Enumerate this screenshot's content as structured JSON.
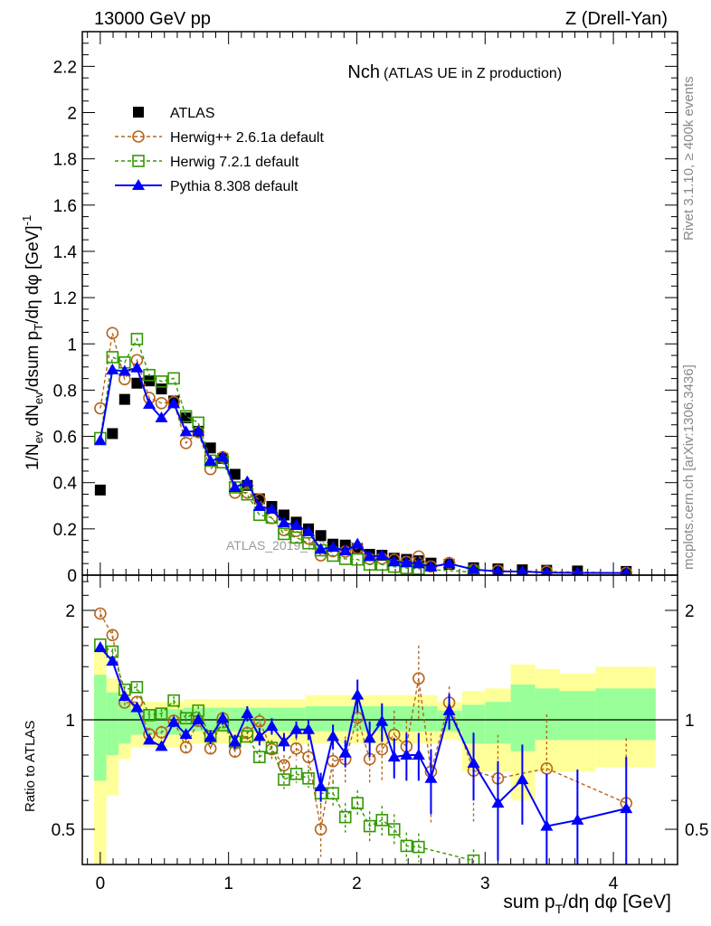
{
  "header": {
    "left": "13000 GeV pp",
    "right": "Z (Drell-Yan)"
  },
  "side_text": {
    "rivet": "Rivet 3.1.10, ≥ 400k events",
    "mcplots": "mcplots.cern.ch [arXiv:1306.3436]"
  },
  "watermark": "ATLAS_2019_I1736531",
  "colors": {
    "data": "#000000",
    "herwigpp": "#b5651d",
    "herwig7": "#339900",
    "pythia": "#0000ff",
    "band_outer": "#ffff99",
    "band_inner": "#99ff99"
  },
  "chart_data": {
    "type": "scatter",
    "title_main": "Nch",
    "title_sub": "(ATLAS UE in Z production)",
    "xlabel": "sum p_T/dη dφ [GeV]",
    "ylabel": "1/N_ev dN_ev/dsum p_T/dη dφ [GeV]^-1",
    "ratio_ylabel": "Ratio to ATLAS",
    "xlim": [
      -0.14,
      4.5
    ],
    "ylim": [
      0,
      2.35
    ],
    "ratio_ylim": [
      0.4,
      2.5
    ],
    "ratio_scale": "log",
    "legend_position": "top-left",
    "x_ticks": [
      "0",
      "1",
      "2",
      "3",
      "4"
    ],
    "y_ticks": [
      "0",
      "0.2",
      "0.4",
      "0.6",
      "0.8",
      "1",
      "1.2",
      "1.4",
      "1.6",
      "1.8",
      "2",
      "2.2"
    ],
    "ratio_ticks": [
      "0.5",
      "1",
      "2"
    ],
    "x": [
      0,
      0.095,
      0.19,
      0.286,
      0.382,
      0.477,
      0.573,
      0.668,
      0.764,
      0.859,
      0.955,
      1.05,
      1.146,
      1.241,
      1.337,
      1.432,
      1.528,
      1.623,
      1.719,
      1.814,
      1.91,
      2.005,
      2.1,
      2.196,
      2.291,
      2.387,
      2.482,
      2.578,
      2.72,
      2.91,
      3.1,
      3.29,
      3.48,
      3.72,
      4.1
    ],
    "series": [
      {
        "name": "ATLAS",
        "key": "data",
        "marker": "square",
        "values": [
          0.368,
          0.612,
          0.76,
          0.83,
          0.84,
          0.805,
          0.753,
          0.68,
          0.622,
          0.55,
          0.505,
          0.436,
          0.388,
          0.33,
          0.297,
          0.26,
          0.229,
          0.2,
          0.171,
          0.134,
          0.13,
          0.115,
          0.09,
          0.086,
          0.073,
          0.068,
          0.062,
          0.052,
          0.047,
          0.032,
          0.027,
          0.023,
          0.021,
          0.018,
          0.016
        ]
      },
      {
        "name": "Herwig++ 2.6.1a default",
        "key": "herwigpp",
        "marker": "circle",
        "line": "dashed",
        "ratio": [
          1.96,
          1.71,
          1.115,
          1.12,
          0.912,
          0.924,
          0.994,
          0.84,
          0.994,
          0.834,
          1.01,
          0.818,
          0.92,
          0.99,
          0.83,
          0.75,
          0.834,
          0.79,
          0.5,
          0.77,
          0.78,
          1.013,
          0.78,
          0.83,
          0.91,
          0.845,
          1.3,
          0.72,
          1.115,
          0.725,
          0.69,
          null,
          0.735,
          null,
          0.59
        ],
        "ratio_err": [
          0.05,
          0.05,
          0.04,
          0.04,
          0.04,
          0.04,
          0.04,
          0.04,
          0.04,
          0.04,
          0.04,
          0.04,
          0.04,
          0.05,
          0.05,
          0.05,
          0.06,
          0.07,
          0.08,
          0.1,
          0.12,
          0.15,
          0.12,
          0.15,
          0.15,
          0.15,
          0.3,
          0.2,
          0.12,
          0.2,
          0.22,
          0,
          0.3,
          0,
          0.3
        ]
      },
      {
        "name": "Herwig 7.2.1 default",
        "key": "herwig7",
        "marker": "open-square",
        "line": "dashed",
        "ratio": [
          1.61,
          1.54,
          1.21,
          1.23,
          1.03,
          1.04,
          1.13,
          1.01,
          1.06,
          0.9,
          0.966,
          0.87,
          0.9,
          0.79,
          0.837,
          0.685,
          0.71,
          0.69,
          0.628,
          0.628,
          0.54,
          0.59,
          0.51,
          0.53,
          0.5,
          0.45,
          0.447,
          null,
          null,
          0.41,
          null,
          null,
          null,
          null,
          null
        ],
        "ratio_err": [
          0.03,
          0.03,
          0.03,
          0.03,
          0.03,
          0.03,
          0.03,
          0.03,
          0.03,
          0.03,
          0.03,
          0.03,
          0.03,
          0.04,
          0.04,
          0.04,
          0.04,
          0.04,
          0.05,
          0.05,
          0.05,
          0.05,
          0.05,
          0.05,
          0.05,
          0.04,
          0.04,
          0,
          0,
          0.03,
          0,
          0,
          0,
          0,
          0
        ]
      },
      {
        "name": "Pythia 8.308 default",
        "key": "pythia",
        "marker": "triangle",
        "line": "solid",
        "ratio": [
          1.58,
          1.45,
          1.16,
          1.08,
          0.88,
          0.845,
          0.985,
          0.912,
          1.0,
          0.897,
          1.01,
          0.87,
          1.04,
          0.9,
          0.96,
          0.87,
          0.94,
          0.94,
          0.655,
          0.9,
          0.81,
          1.17,
          0.89,
          0.99,
          0.79,
          0.8,
          0.8,
          0.69,
          1.06,
          0.76,
          0.59,
          0.685,
          0.51,
          0.53,
          0.57
        ],
        "ratio_err": [
          0.03,
          0.03,
          0.03,
          0.03,
          0.02,
          0.02,
          0.03,
          0.03,
          0.03,
          0.04,
          0.04,
          0.04,
          0.05,
          0.05,
          0.05,
          0.05,
          0.05,
          0.06,
          0.06,
          0.07,
          0.07,
          0.12,
          0.1,
          0.12,
          0.1,
          0.12,
          0.12,
          0.14,
          0.12,
          0.16,
          0.18,
          0.17,
          0.2,
          0.2,
          0.22
        ]
      }
    ],
    "uncertainty_bands": [
      {
        "x0": -0.048,
        "x1": 0.048,
        "outer": [
          0.3,
          1.55
        ],
        "inner": [
          0.68,
          1.33
        ]
      },
      {
        "x0": 0.048,
        "x1": 0.143,
        "outer": [
          0.62,
          1.3
        ],
        "inner": [
          0.8,
          1.19
        ]
      },
      {
        "x0": 0.143,
        "x1": 0.238,
        "outer": [
          0.78,
          1.2
        ],
        "inner": [
          0.86,
          1.12
        ]
      },
      {
        "x0": 0.238,
        "x1": 0.65,
        "outer": [
          0.84,
          1.12
        ],
        "inner": [
          0.91,
          1.07
        ]
      },
      {
        "x0": 0.65,
        "x1": 1.6,
        "outer": [
          0.86,
          1.14
        ],
        "inner": [
          0.93,
          1.08
        ]
      },
      {
        "x0": 1.6,
        "x1": 2.63,
        "outer": [
          0.86,
          1.17
        ],
        "inner": [
          0.93,
          1.09
        ]
      },
      {
        "x0": 2.63,
        "x1": 2.82,
        "outer": [
          0.88,
          1.12
        ],
        "inner": [
          0.93,
          1.06
        ]
      },
      {
        "x0": 2.82,
        "x1": 3.0,
        "outer": [
          0.72,
          1.2
        ],
        "inner": [
          0.86,
          1.1
        ]
      },
      {
        "x0": 3.0,
        "x1": 3.2,
        "outer": [
          0.72,
          1.22
        ],
        "inner": [
          0.86,
          1.12
        ]
      },
      {
        "x0": 3.2,
        "x1": 3.39,
        "outer": [
          0.6,
          1.42
        ],
        "inner": [
          0.82,
          1.25
        ]
      },
      {
        "x0": 3.39,
        "x1": 3.58,
        "outer": [
          0.72,
          1.38
        ],
        "inner": [
          0.88,
          1.22
        ]
      },
      {
        "x0": 3.58,
        "x1": 3.86,
        "outer": [
          0.72,
          1.34
        ],
        "inner": [
          0.88,
          1.2
        ]
      },
      {
        "x0": 3.86,
        "x1": 4.33,
        "outer": [
          0.74,
          1.4
        ],
        "inner": [
          0.88,
          1.22
        ]
      }
    ]
  }
}
